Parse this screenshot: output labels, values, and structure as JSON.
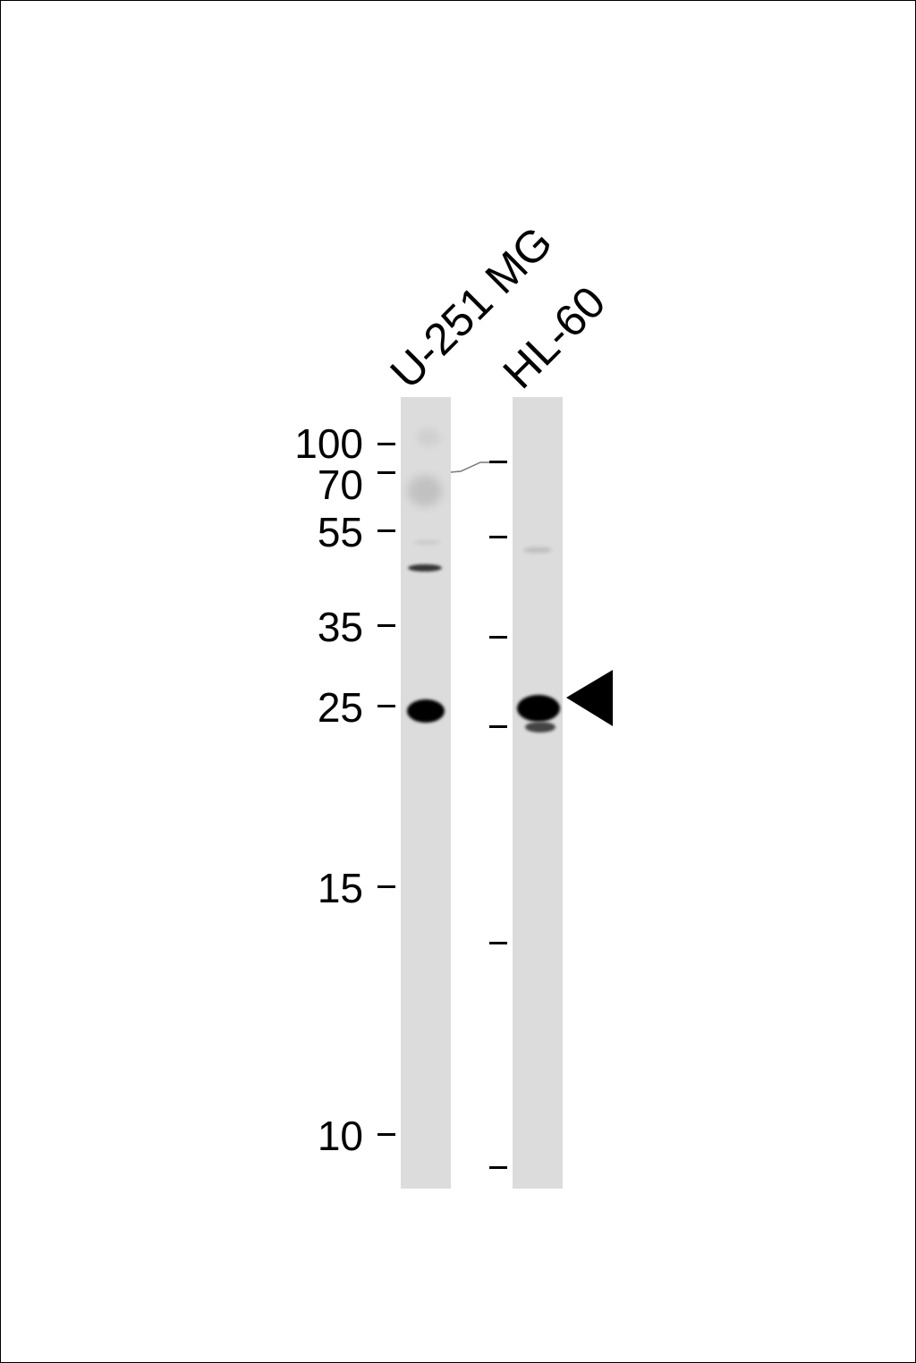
{
  "lanes": [
    {
      "label": "U-251 MG"
    },
    {
      "label": "HL-60"
    }
  ],
  "markers_kda": [
    "100",
    "70",
    "55",
    "35",
    "25",
    "15",
    "10"
  ],
  "target_indicator": "arrowhead-left",
  "colors": {
    "lane_background": "#dcdcdc",
    "band": "#000000"
  }
}
